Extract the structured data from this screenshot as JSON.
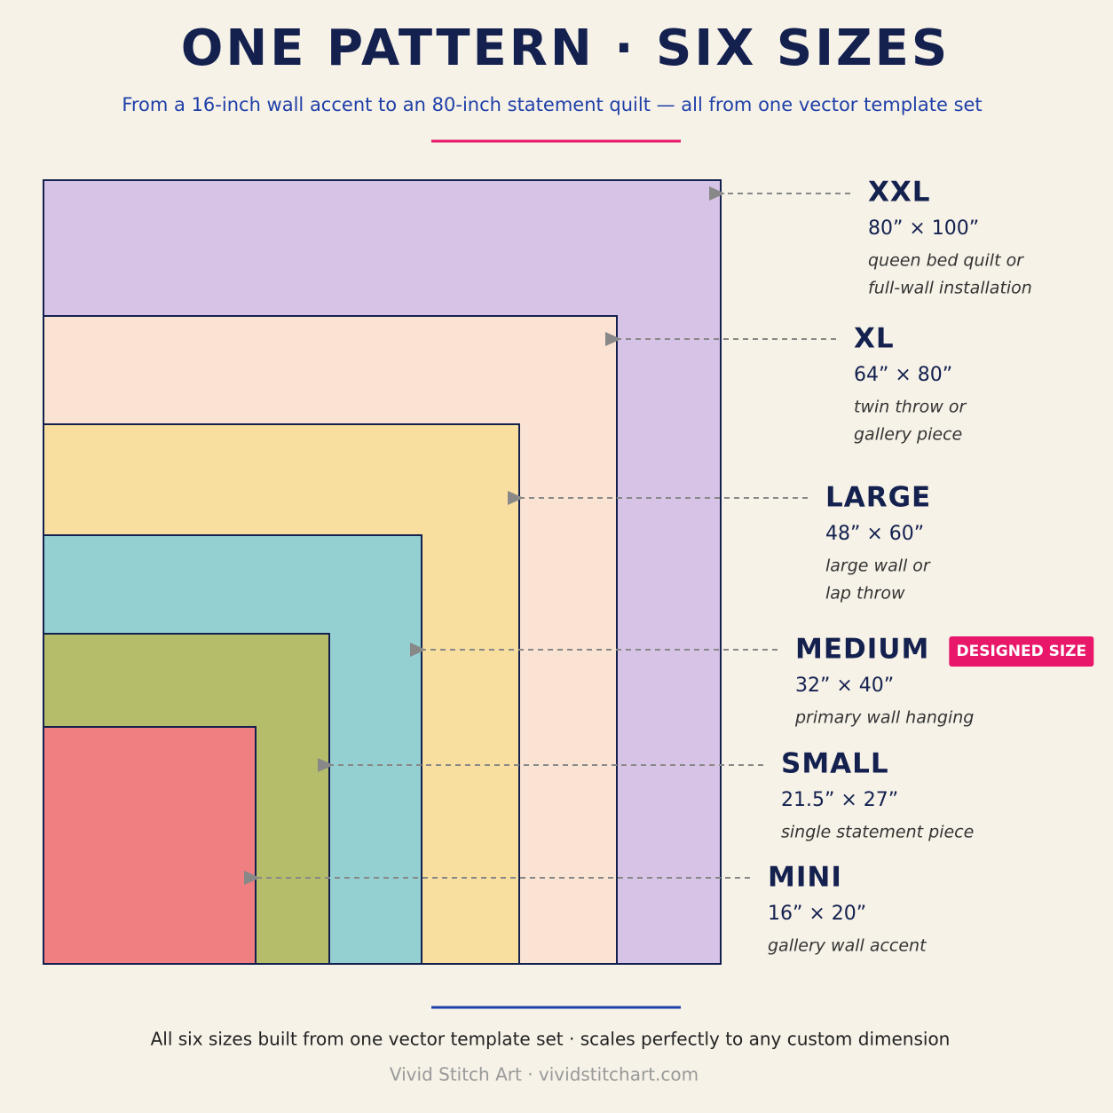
{
  "header": {
    "title": "ONE PATTERN · SIX SIZES",
    "subtitle": "From a 16-inch wall accent to an 80-inch statement quilt — all from one vector template set"
  },
  "sizes": [
    {
      "name": "XXL",
      "dimensions": "80” × 100”",
      "description": [
        "queen bed quilt or",
        "full-wall installation"
      ]
    },
    {
      "name": "XL",
      "dimensions": "64” × 80”",
      "description": [
        "twin throw or",
        "gallery piece"
      ]
    },
    {
      "name": "LARGE",
      "dimensions": "48” × 60”",
      "description": [
        "large wall or",
        "lap throw"
      ]
    },
    {
      "name": "MEDIUM",
      "dimensions": "32” × 40”",
      "description": [
        "primary wall hanging"
      ],
      "badge": "DESIGNED SIZE"
    },
    {
      "name": "SMALL",
      "dimensions": "21.5” × 27”",
      "description": [
        "single statement piece"
      ]
    },
    {
      "name": "MINI",
      "dimensions": "16” × 20”",
      "description": [
        "gallery wall accent"
      ]
    }
  ],
  "footer": {
    "note": "All six sizes built from one vector template set · scales perfectly to any custom dimension",
    "credit": "Vivid Stitch Art · vividstitchart.com"
  }
}
